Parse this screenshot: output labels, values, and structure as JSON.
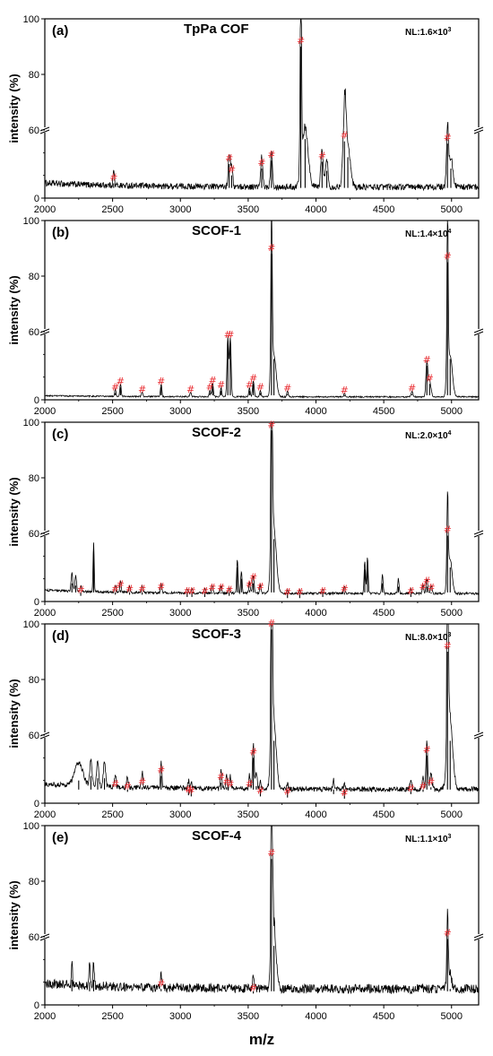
{
  "chart_data": [
    {
      "type": "line",
      "panel": "(a)",
      "title": "TpPa COF",
      "nl": "NL:1.6×10",
      "nl_exp": "3",
      "ylabel": "intensity (%)",
      "xlabel": "",
      "xlim": [
        2000,
        5200
      ],
      "ylim": [
        0,
        100
      ],
      "yticks": [
        "0",
        "60",
        "80",
        "100"
      ],
      "xticks": [
        "2000",
        "2500",
        "3000",
        "3500",
        "4000",
        "4500",
        "5000"
      ],
      "noise": 0.055,
      "baseline": 0.07,
      "peaks": [
        {
          "x": 2508,
          "y": 0.13,
          "w": 5,
          "mark": true
        },
        {
          "x": 3360,
          "y": 0.3,
          "w": 7,
          "mark": true
        },
        {
          "x": 3378,
          "y": 0.2,
          "w": 7,
          "mark": true
        },
        {
          "x": 3600,
          "y": 0.26,
          "w": 7,
          "mark": true
        },
        {
          "x": 3672,
          "y": 0.33,
          "w": 7,
          "mark": true
        },
        {
          "x": 3888,
          "y": 0.9,
          "w": 6,
          "mark": true
        },
        {
          "x": 3920,
          "y": 0.52,
          "w": 22,
          "mark": false
        },
        {
          "x": 4045,
          "y": 0.32,
          "w": 9,
          "mark": true
        },
        {
          "x": 4080,
          "y": 0.24,
          "w": 9,
          "mark": false
        },
        {
          "x": 4210,
          "y": 0.5,
          "w": 12,
          "mark": true
        },
        {
          "x": 4235,
          "y": 0.36,
          "w": 18,
          "mark": false
        },
        {
          "x": 4970,
          "y": 0.48,
          "w": 7,
          "mark": true
        },
        {
          "x": 4995,
          "y": 0.26,
          "w": 15,
          "mark": false
        }
      ]
    },
    {
      "type": "line",
      "panel": "(b)",
      "title": "SCOF-1",
      "nl": "NL:1.4×10",
      "nl_exp": "4",
      "ylabel": "intensity (%)",
      "xlabel": "",
      "xlim": [
        2000,
        5200
      ],
      "ylim": [
        0,
        100
      ],
      "yticks": [
        "0",
        "60",
        "80",
        "100"
      ],
      "xticks": [
        "2000",
        "2500",
        "3000",
        "3500",
        "4000",
        "4500",
        "5000"
      ],
      "noise": 0.012,
      "baseline": 0.02,
      "peaks": [
        {
          "x": 2520,
          "y": 0.06,
          "w": 5,
          "mark": true
        },
        {
          "x": 2558,
          "y": 0.11,
          "w": 5,
          "mark": true
        },
        {
          "x": 2718,
          "y": 0.04,
          "w": 5,
          "mark": true
        },
        {
          "x": 2858,
          "y": 0.11,
          "w": 5,
          "mark": true
        },
        {
          "x": 3075,
          "y": 0.04,
          "w": 5,
          "mark": true
        },
        {
          "x": 3218,
          "y": 0.06,
          "w": 5,
          "mark": true
        },
        {
          "x": 3238,
          "y": 0.12,
          "w": 5,
          "mark": true
        },
        {
          "x": 3300,
          "y": 0.08,
          "w": 5,
          "mark": true
        },
        {
          "x": 3350,
          "y": 0.52,
          "w": 6,
          "mark": true
        },
        {
          "x": 3368,
          "y": 0.52,
          "w": 6,
          "mark": true
        },
        {
          "x": 3510,
          "y": 0.08,
          "w": 5,
          "mark": true
        },
        {
          "x": 3538,
          "y": 0.14,
          "w": 6,
          "mark": true
        },
        {
          "x": 3590,
          "y": 0.06,
          "w": 5,
          "mark": true
        },
        {
          "x": 3672,
          "y": 0.88,
          "w": 6,
          "mark": true
        },
        {
          "x": 3690,
          "y": 0.36,
          "w": 16,
          "mark": false
        },
        {
          "x": 3790,
          "y": 0.05,
          "w": 5,
          "mark": true
        },
        {
          "x": 4210,
          "y": 0.03,
          "w": 5,
          "mark": true
        },
        {
          "x": 4708,
          "y": 0.05,
          "w": 6,
          "mark": true
        },
        {
          "x": 4818,
          "y": 0.3,
          "w": 7,
          "mark": true
        },
        {
          "x": 4838,
          "y": 0.14,
          "w": 10,
          "mark": true
        },
        {
          "x": 4970,
          "y": 0.85,
          "w": 6,
          "mark": true
        },
        {
          "x": 4990,
          "y": 0.36,
          "w": 16,
          "mark": false
        }
      ]
    },
    {
      "type": "line",
      "panel": "(c)",
      "title": "SCOF-2",
      "nl": "NL:2.0×10",
      "nl_exp": "4",
      "ylabel": "intensity (%)",
      "xlabel": "",
      "xlim": [
        2000,
        5200
      ],
      "ylim": [
        0,
        100
      ],
      "yticks": [
        "0",
        "60",
        "80",
        "100"
      ],
      "xticks": [
        "2000",
        "2500",
        "3000",
        "3500",
        "4000",
        "4500",
        "5000"
      ],
      "noise": 0.02,
      "baseline": 0.06,
      "peaks": [
        {
          "x": 2200,
          "y": 0.16,
          "w": 6,
          "mark": false
        },
        {
          "x": 2228,
          "y": 0.14,
          "w": 6,
          "mark": false
        },
        {
          "x": 2265,
          "y": 0.05,
          "w": 5,
          "mark": true
        },
        {
          "x": 2360,
          "y": 0.44,
          "w": 4,
          "mark": false
        },
        {
          "x": 2520,
          "y": 0.06,
          "w": 5,
          "mark": true
        },
        {
          "x": 2558,
          "y": 0.1,
          "w": 5,
          "mark": true
        },
        {
          "x": 2625,
          "y": 0.06,
          "w": 5,
          "mark": true
        },
        {
          "x": 2718,
          "y": 0.06,
          "w": 5,
          "mark": true
        },
        {
          "x": 2858,
          "y": 0.08,
          "w": 5,
          "mark": true
        },
        {
          "x": 3050,
          "y": 0.04,
          "w": 5,
          "mark": true
        },
        {
          "x": 3085,
          "y": 0.04,
          "w": 5,
          "mark": true
        },
        {
          "x": 3180,
          "y": 0.04,
          "w": 5,
          "mark": true
        },
        {
          "x": 3235,
          "y": 0.07,
          "w": 5,
          "mark": true
        },
        {
          "x": 3300,
          "y": 0.07,
          "w": 5,
          "mark": true
        },
        {
          "x": 3360,
          "y": 0.05,
          "w": 5,
          "mark": true
        },
        {
          "x": 3420,
          "y": 0.3,
          "w": 5,
          "mark": false
        },
        {
          "x": 3450,
          "y": 0.2,
          "w": 5,
          "mark": false
        },
        {
          "x": 3510,
          "y": 0.1,
          "w": 5,
          "mark": true
        },
        {
          "x": 3538,
          "y": 0.16,
          "w": 6,
          "mark": true
        },
        {
          "x": 3590,
          "y": 0.08,
          "w": 5,
          "mark": true
        },
        {
          "x": 3672,
          "y": 0.97,
          "w": 6,
          "mark": true
        },
        {
          "x": 3690,
          "y": 0.55,
          "w": 18,
          "mark": false
        },
        {
          "x": 3790,
          "y": 0.03,
          "w": 5,
          "mark": true
        },
        {
          "x": 3880,
          "y": 0.03,
          "w": 5,
          "mark": true
        },
        {
          "x": 4050,
          "y": 0.04,
          "w": 5,
          "mark": true
        },
        {
          "x": 4210,
          "y": 0.06,
          "w": 5,
          "mark": true
        },
        {
          "x": 4360,
          "y": 0.28,
          "w": 5,
          "mark": false
        },
        {
          "x": 4380,
          "y": 0.32,
          "w": 5,
          "mark": false
        },
        {
          "x": 4490,
          "y": 0.16,
          "w": 5,
          "mark": false
        },
        {
          "x": 4608,
          "y": 0.13,
          "w": 5,
          "mark": false
        },
        {
          "x": 4700,
          "y": 0.04,
          "w": 5,
          "mark": true
        },
        {
          "x": 4790,
          "y": 0.08,
          "w": 5,
          "mark": true
        },
        {
          "x": 4818,
          "y": 0.13,
          "w": 6,
          "mark": true
        },
        {
          "x": 4850,
          "y": 0.07,
          "w": 6,
          "mark": true
        },
        {
          "x": 4970,
          "y": 0.58,
          "w": 6,
          "mark": true
        },
        {
          "x": 4990,
          "y": 0.3,
          "w": 14,
          "mark": false
        }
      ]
    },
    {
      "type": "line",
      "panel": "(d)",
      "title": "SCOF-3",
      "nl": "NL:8.0×10",
      "nl_exp": "3",
      "ylabel": "intensity (%)",
      "xlabel": "",
      "xlim": [
        2000,
        5200
      ],
      "ylim": [
        0,
        100
      ],
      "yticks": [
        "0",
        "60",
        "80",
        "100"
      ],
      "xticks": [
        "2000",
        "2500",
        "3000",
        "3500",
        "4000",
        "4500",
        "5000"
      ],
      "noise": 0.045,
      "baseline": 0.1,
      "peaks": [
        {
          "x": 2250,
          "y": 0.2,
          "w": 30,
          "mark": false
        },
        {
          "x": 2340,
          "y": 0.24,
          "w": 8,
          "mark": false
        },
        {
          "x": 2390,
          "y": 0.22,
          "w": 8,
          "mark": false
        },
        {
          "x": 2440,
          "y": 0.22,
          "w": 8,
          "mark": false
        },
        {
          "x": 2520,
          "y": 0.12,
          "w": 6,
          "mark": true
        },
        {
          "x": 2610,
          "y": 0.1,
          "w": 5,
          "mark": true
        },
        {
          "x": 2718,
          "y": 0.14,
          "w": 5,
          "mark": true
        },
        {
          "x": 2858,
          "y": 0.24,
          "w": 5,
          "mark": true
        },
        {
          "x": 3060,
          "y": 0.07,
          "w": 5,
          "mark": true
        },
        {
          "x": 3080,
          "y": 0.06,
          "w": 5,
          "mark": true
        },
        {
          "x": 3300,
          "y": 0.18,
          "w": 5,
          "mark": true
        },
        {
          "x": 3340,
          "y": 0.14,
          "w": 5,
          "mark": true
        },
        {
          "x": 3368,
          "y": 0.12,
          "w": 5,
          "mark": true
        },
        {
          "x": 3510,
          "y": 0.12,
          "w": 5,
          "mark": true
        },
        {
          "x": 3538,
          "y": 0.4,
          "w": 6,
          "mark": true
        },
        {
          "x": 3560,
          "y": 0.15,
          "w": 6,
          "mark": false
        },
        {
          "x": 3590,
          "y": 0.06,
          "w": 5,
          "mark": true
        },
        {
          "x": 3672,
          "y": 0.98,
          "w": 6,
          "mark": true
        },
        {
          "x": 3690,
          "y": 0.55,
          "w": 18,
          "mark": false
        },
        {
          "x": 3790,
          "y": 0.05,
          "w": 5,
          "mark": true
        },
        {
          "x": 4130,
          "y": 0.08,
          "w": 5,
          "mark": false
        },
        {
          "x": 4210,
          "y": 0.04,
          "w": 5,
          "mark": true
        },
        {
          "x": 4700,
          "y": 0.08,
          "w": 8,
          "mark": true
        },
        {
          "x": 4790,
          "y": 0.1,
          "w": 6,
          "mark": true
        },
        {
          "x": 4818,
          "y": 0.42,
          "w": 6,
          "mark": true
        },
        {
          "x": 4848,
          "y": 0.14,
          "w": 8,
          "mark": true
        },
        {
          "x": 4970,
          "y": 0.9,
          "w": 6,
          "mark": true
        },
        {
          "x": 4990,
          "y": 0.55,
          "w": 20,
          "mark": false
        }
      ]
    },
    {
      "type": "line",
      "panel": "(e)",
      "title": "SCOF-4",
      "nl": "NL:1.1×10",
      "nl_exp": "3",
      "ylabel": "intensity (%)",
      "xlabel": "m/z",
      "xlim": [
        2000,
        5200
      ],
      "ylim": [
        0,
        100
      ],
      "yticks": [
        "0",
        "60",
        "80",
        "100"
      ],
      "xticks": [
        "2000",
        "2500",
        "3000",
        "3500",
        "4000",
        "4500",
        "5000"
      ],
      "noise": 0.08,
      "baseline": 0.1,
      "peaks": [
        {
          "x": 2200,
          "y": 0.22,
          "w": 4,
          "mark": false
        },
        {
          "x": 2330,
          "y": 0.2,
          "w": 4,
          "mark": false
        },
        {
          "x": 2360,
          "y": 0.22,
          "w": 4,
          "mark": false
        },
        {
          "x": 2858,
          "y": 0.14,
          "w": 5,
          "mark": true
        },
        {
          "x": 3538,
          "y": 0.1,
          "w": 6,
          "mark": true
        },
        {
          "x": 3672,
          "y": 0.88,
          "w": 6,
          "mark": true
        },
        {
          "x": 3690,
          "y": 0.52,
          "w": 16,
          "mark": false
        },
        {
          "x": 4970,
          "y": 0.58,
          "w": 6,
          "mark": true
        },
        {
          "x": 4990,
          "y": 0.14,
          "w": 10,
          "mark": false
        }
      ]
    }
  ]
}
